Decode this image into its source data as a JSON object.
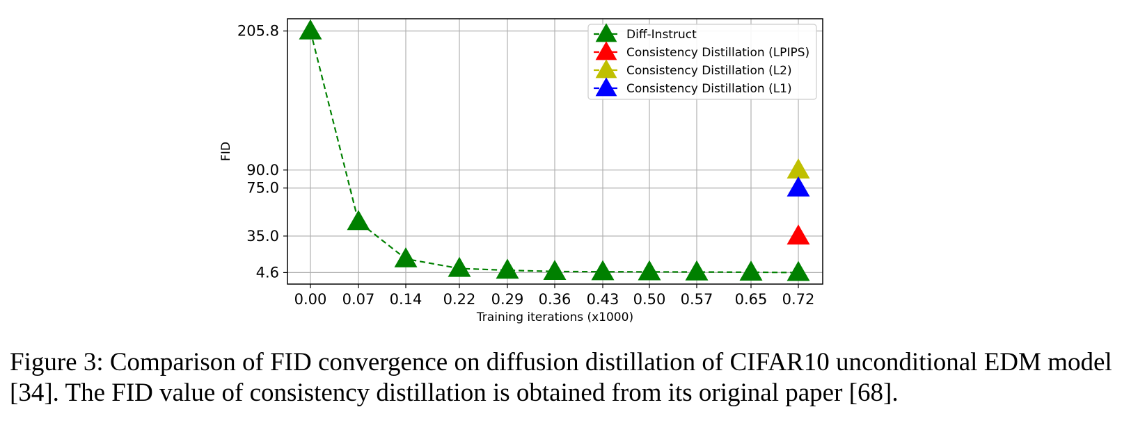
{
  "chart_data": {
    "type": "line",
    "title": "",
    "xlabel": "Training iterations (x1000)",
    "ylabel": "FID",
    "categories": [
      "0.00",
      "0.07",
      "0.14",
      "0.22",
      "0.29",
      "0.36",
      "0.43",
      "0.50",
      "0.57",
      "0.65",
      "0.72"
    ],
    "x": [
      0.0,
      0.07,
      0.14,
      0.22,
      0.29,
      0.36,
      0.43,
      0.5,
      0.57,
      0.65,
      0.72
    ],
    "yticks": [
      "4.6",
      "35.0",
      "75.0",
      "90.0",
      "205.8"
    ],
    "ytick_values": [
      4.6,
      35.0,
      75.0,
      90.0,
      205.8
    ],
    "ylim": [
      -5,
      216
    ],
    "grid": true,
    "legend_position": "top-right",
    "series": [
      {
        "name": "Diff-Instruct",
        "color": "#008000",
        "line": "dashed",
        "marker": "triangle",
        "x": [
          0.0,
          0.07,
          0.14,
          0.22,
          0.29,
          0.36,
          0.43,
          0.5,
          0.57,
          0.65,
          0.72
        ],
        "values": [
          205.8,
          47.0,
          16.0,
          8.0,
          6.5,
          5.5,
          5.3,
          5.2,
          5.1,
          4.9,
          4.6
        ]
      },
      {
        "name": "Consistency Distillation (LPIPS)",
        "color": "#ff0000",
        "line": "dashed",
        "marker": "triangle",
        "x": [
          0.72
        ],
        "values": [
          35.0
        ]
      },
      {
        "name": "Consistency Distillation (L2)",
        "color": "#bfbf00",
        "line": "dashed",
        "marker": "triangle",
        "x": [
          0.72
        ],
        "values": [
          90.0
        ]
      },
      {
        "name": "Consistency Distillation (L1)",
        "color": "#0000ff",
        "line": "dashed",
        "marker": "triangle",
        "x": [
          0.72
        ],
        "values": [
          75.0
        ]
      }
    ]
  },
  "caption": "Figure 3: Comparison of FID convergence on diffusion distillation of CIFAR10 unconditional EDM model [34]. The FID value of consistency distillation is obtained from its original paper [68]."
}
